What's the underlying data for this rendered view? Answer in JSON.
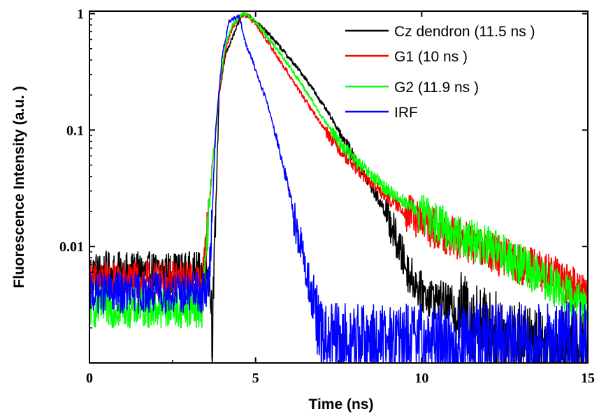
{
  "chart_data": {
    "type": "line",
    "xlabel": "Time (ns)",
    "ylabel": "Fluorescence Intensity   (a.u. )",
    "x_scale": "linear",
    "y_scale": "log",
    "xlim": [
      0,
      15
    ],
    "ylim": [
      0.001,
      1.05
    ],
    "x_ticks": [
      0,
      5,
      10,
      15
    ],
    "x_tick_labels": [
      "0",
      "5",
      "10",
      "15"
    ],
    "y_ticks": [
      0.01,
      0.1,
      1
    ],
    "y_tick_labels": [
      "0.01",
      "0.1",
      "1"
    ],
    "grid": false,
    "legend_position": "top-right",
    "series": [
      {
        "name": "Cz dendron   (11.5 ns )",
        "color": "#000000",
        "x": [
          0.0,
          3.6,
          3.7,
          3.9,
          4.1,
          4.3,
          4.5,
          4.6,
          4.8,
          5.0,
          5.5,
          6.0,
          6.5,
          7.0,
          7.5,
          8.0,
          8.5,
          9.0,
          9.3,
          9.6,
          10.0,
          11.0,
          12.0,
          13.0,
          14.0,
          15.0
        ],
        "y": [
          0.006,
          0.006,
          0.002,
          0.2,
          0.45,
          0.62,
          0.85,
          1.0,
          0.95,
          0.86,
          0.62,
          0.42,
          0.28,
          0.17,
          0.1,
          0.055,
          0.032,
          0.018,
          0.01,
          0.006,
          0.004,
          0.003,
          0.002,
          0.0015,
          0.0013,
          0.0012
        ]
      },
      {
        "name": "G1   (10 ns )",
        "color": "#ff0000",
        "x": [
          0.0,
          3.4,
          3.5,
          3.7,
          3.9,
          4.1,
          4.3,
          4.5,
          4.6,
          4.8,
          5.0,
          5.5,
          6.0,
          6.5,
          7.0,
          7.5,
          8.0,
          8.5,
          9.0,
          9.5,
          10.0,
          11.0,
          12.0,
          13.0,
          14.0,
          15.0
        ],
        "y": [
          0.005,
          0.005,
          0.01,
          0.05,
          0.2,
          0.5,
          0.75,
          0.9,
          0.98,
          0.95,
          0.82,
          0.5,
          0.3,
          0.18,
          0.11,
          0.07,
          0.048,
          0.035,
          0.026,
          0.02,
          0.016,
          0.012,
          0.009,
          0.007,
          0.0055,
          0.004
        ]
      },
      {
        "name": "G2   (11.9 ns )",
        "color": "#00ff00",
        "x": [
          0.0,
          3.4,
          3.5,
          3.7,
          3.9,
          4.1,
          4.3,
          4.5,
          4.6,
          4.8,
          5.0,
          5.5,
          6.0,
          6.5,
          7.0,
          7.5,
          8.0,
          8.5,
          9.0,
          9.5,
          10.0,
          11.0,
          12.0,
          13.0,
          14.0,
          15.0
        ],
        "y": [
          0.003,
          0.003,
          0.008,
          0.05,
          0.22,
          0.55,
          0.8,
          0.92,
          0.98,
          0.97,
          0.85,
          0.56,
          0.36,
          0.22,
          0.13,
          0.08,
          0.055,
          0.04,
          0.03,
          0.024,
          0.019,
          0.013,
          0.01,
          0.007,
          0.0045,
          0.003
        ]
      },
      {
        "name": "IRF",
        "color": "#0000ff",
        "x": [
          0.0,
          3.5,
          3.6,
          3.8,
          4.0,
          4.2,
          4.4,
          4.5,
          4.7,
          4.9,
          5.1,
          5.3,
          5.5,
          5.8,
          6.0,
          6.2,
          6.4,
          6.6,
          6.8,
          7.0,
          8.0,
          9.0,
          10.0,
          11.0,
          12.0,
          13.0,
          14.0,
          15.0
        ],
        "y": [
          0.004,
          0.004,
          0.005,
          0.1,
          0.45,
          0.85,
          0.92,
          0.97,
          0.55,
          0.4,
          0.27,
          0.19,
          0.12,
          0.055,
          0.03,
          0.016,
          0.009,
          0.005,
          0.0025,
          0.0015,
          0.0015,
          0.0015,
          0.0015,
          0.0015,
          0.0015,
          0.0015,
          0.0015,
          0.0015
        ]
      }
    ]
  }
}
